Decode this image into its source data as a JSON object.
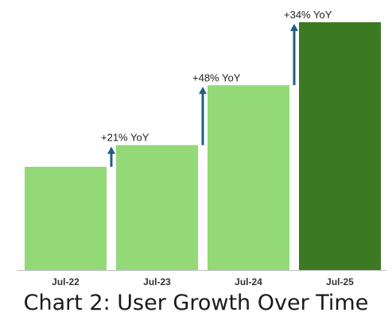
{
  "chart_data": {
    "type": "bar",
    "title": "Chart 2: User Growth Over Time",
    "categories": [
      "Jul-22",
      "Jul-23",
      "Jul-24",
      "Jul-25"
    ],
    "values": [
      100,
      121,
      179,
      240
    ],
    "ylim": [
      0,
      240
    ],
    "grid": false,
    "annotations": [
      {
        "from": "Jul-22",
        "to": "Jul-23",
        "label": "+21% YoY"
      },
      {
        "from": "Jul-23",
        "to": "Jul-24",
        "label": "+48% YoY"
      },
      {
        "from": "Jul-24",
        "to": "Jul-25",
        "label": "+34% YoY"
      }
    ]
  },
  "colors": {
    "bar": "#93d978",
    "highlight_bar": "#3b7a23",
    "arrow": "#1f5f7f",
    "axis": "#bdbdbd",
    "text": "#222222"
  },
  "highlight_index": 3
}
